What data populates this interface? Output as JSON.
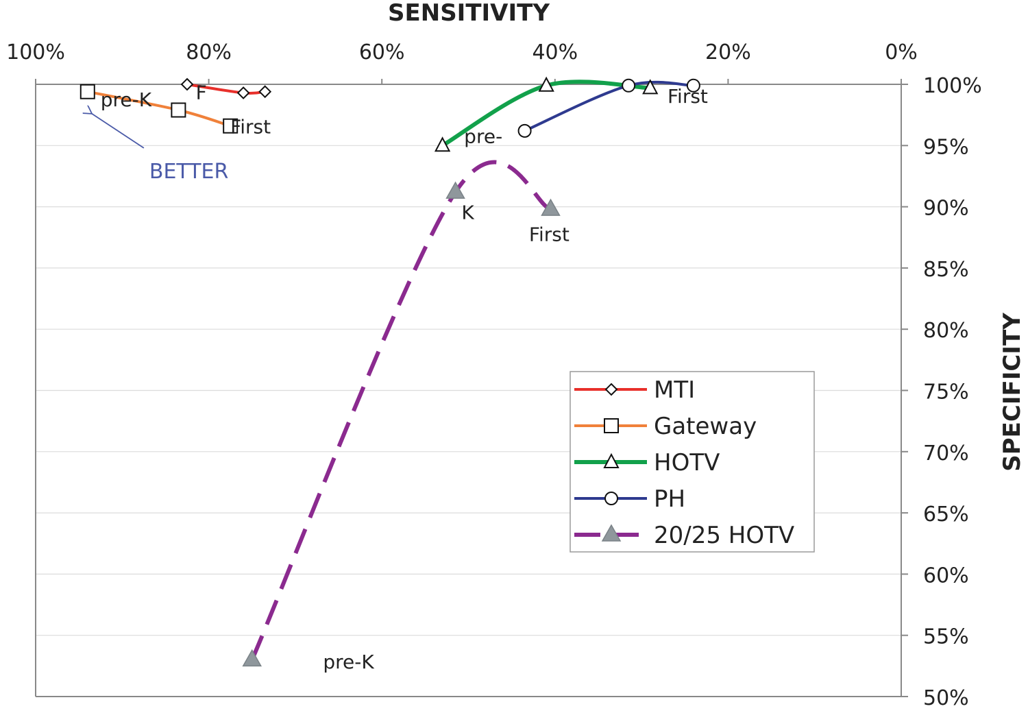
{
  "chart_data": {
    "type": "line",
    "title": "",
    "xlabel": "SENSITIVITY",
    "ylabel": "SPECIFICITY",
    "x_axis": {
      "position": "top",
      "reversed": true,
      "range": [
        100,
        0
      ],
      "unit": "%",
      "ticks": [
        100,
        80,
        60,
        40,
        20,
        0
      ]
    },
    "y_axis": {
      "position": "right",
      "range": [
        50,
        100
      ],
      "unit": "%",
      "ticks": [
        50,
        55,
        60,
        65,
        70,
        75,
        80,
        85,
        90,
        95,
        100
      ]
    },
    "x_tick_labels": [
      "100%",
      "80%",
      "60%",
      "40%",
      "20%",
      "0%"
    ],
    "y_tick_labels": [
      "50%",
      "55%",
      "60%",
      "65%",
      "70%",
      "75%",
      "80%",
      "85%",
      "90%",
      "95%",
      "100%"
    ],
    "grid": "horizontal",
    "legend_position": "bottom-right",
    "series": [
      {
        "name": "MTI",
        "color": "#e8302b",
        "marker": "diamond",
        "style": "solid",
        "points": [
          {
            "x": 82.5,
            "y": 100.0
          },
          {
            "x": 76,
            "y": 99.3
          },
          {
            "x": 73.5,
            "y": 99.4
          }
        ]
      },
      {
        "name": "Gateway",
        "color": "#f0813a",
        "marker": "square",
        "style": "solid",
        "points": [
          {
            "x": 94,
            "y": 99.4
          },
          {
            "x": 83.5,
            "y": 97.9
          },
          {
            "x": 77.5,
            "y": 96.6
          }
        ]
      },
      {
        "name": "HOTV",
        "color": "#12a14b",
        "marker": "triangle",
        "style": "solid",
        "points": [
          {
            "x": 53,
            "y": 95.0
          },
          {
            "x": 41,
            "y": 99.9
          },
          {
            "x": 29,
            "y": 99.7
          }
        ]
      },
      {
        "name": "PH",
        "color": "#2e3a8f",
        "marker": "circle",
        "style": "solid",
        "points": [
          {
            "x": 43.5,
            "y": 96.2
          },
          {
            "x": 31.5,
            "y": 99.9
          },
          {
            "x": 24,
            "y": 99.9
          }
        ]
      },
      {
        "name": "20/25 HOTV",
        "color": "#8b2a8f",
        "marker": "triangle-filled",
        "style": "dashed",
        "points": [
          {
            "x": 75,
            "y": 53.0
          },
          {
            "x": 51.5,
            "y": 91.2
          },
          {
            "x": 40.5,
            "y": 89.8
          }
        ]
      }
    ],
    "annotations": [
      {
        "text": "F",
        "x": 81.5,
        "y": 98.8,
        "series": "MTI"
      },
      {
        "text": "pre-K",
        "x": 92.5,
        "y": 98.2,
        "series": "Gateway"
      },
      {
        "text": "First",
        "x": 77.5,
        "y": 96.0,
        "series": "Gateway"
      },
      {
        "text": "pre-",
        "x": 50.5,
        "y": 95.2,
        "series": "HOTV"
      },
      {
        "text": "First",
        "x": 27,
        "y": 98.5,
        "series": "PH"
      },
      {
        "text": "K",
        "x": 50.8,
        "y": 89.0,
        "series": "20/25 HOTV"
      },
      {
        "text": "First",
        "x": 43,
        "y": 87.2,
        "series": "20/25 HOTV"
      },
      {
        "text": "pre-K",
        "x": 66.8,
        "y": 52.3,
        "series": "20/25 HOTV"
      }
    ],
    "callout": {
      "text": "BETTER",
      "color": "#4a5aa8",
      "arrow_from": {
        "x": 87.5,
        "y": 94.8
      },
      "arrow_to": {
        "x": 93.5,
        "y": 97.6
      }
    }
  }
}
